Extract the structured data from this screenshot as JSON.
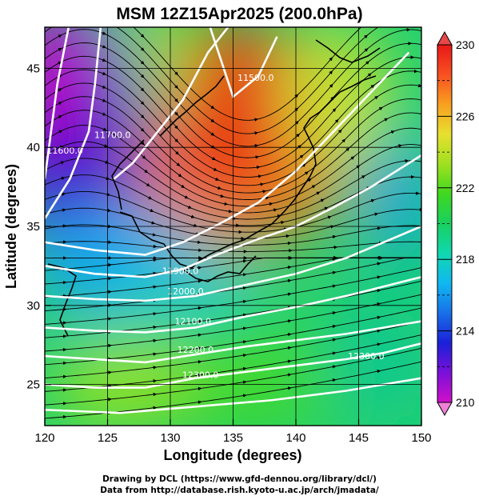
{
  "title": "MSM 12Z15Apr2025 (200.0hPa)",
  "credits": {
    "line1": "Drawing by DCL (https://www.gfd-dennou.org/library/dcl/)",
    "line2": "Data from http://database.rish.kyoto-u.ac.jp/arch/jmadata/"
  },
  "map_data": {
    "xlabel": "Longitude (degrees)",
    "ylabel": "Latitude  (degrees)",
    "xlim": [
      120,
      150
    ],
    "ylim": [
      22.4,
      47.6
    ],
    "xticks": [
      120,
      125,
      130,
      135,
      140,
      145,
      150
    ],
    "yticks": [
      25,
      30,
      35,
      40,
      45
    ],
    "grid": true,
    "colorbar": {
      "min": 210,
      "max": 230,
      "labels": [
        210,
        214,
        218,
        222,
        226,
        230
      ],
      "colors": [
        "#d010c8",
        "#7a10d8",
        "#1a20d8",
        "#1870e8",
        "#10b8f0",
        "#10d8b0",
        "#18d060",
        "#40d820",
        "#a0e020",
        "#e8e030",
        "#f8a020",
        "#f85020",
        "#e81818"
      ]
    },
    "contours": [
      {
        "label": "11600.0",
        "lon": 121.6,
        "lat": 39.6
      },
      {
        "label": "11700.0",
        "lon": 125.4,
        "lat": 40.6
      },
      {
        "label": "11900.0",
        "lon": 130.8,
        "lat": 32.0
      },
      {
        "label": "12000.0",
        "lon": 131.2,
        "lat": 30.7
      },
      {
        "label": "12100.0",
        "lon": 131.8,
        "lat": 28.8
      },
      {
        "label": "12200.0",
        "lon": 132.0,
        "lat": 27.0
      },
      {
        "label": "12300.0",
        "lon": 132.4,
        "lat": 25.4
      },
      {
        "label": "11500.0",
        "lon": 136.8,
        "lat": 44.2
      },
      {
        "label": "12300.0",
        "lon": 145.6,
        "lat": 26.6
      }
    ]
  }
}
